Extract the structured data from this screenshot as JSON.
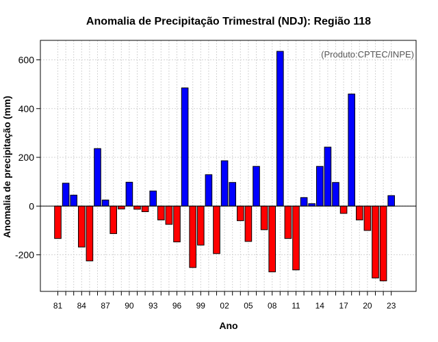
{
  "chart_data": {
    "type": "bar",
    "title": "Anomalia de Precipitação Trimestral (NDJ): Região 118",
    "xlabel": "Ano",
    "ylabel": "Anomalia de precipitação (mm)",
    "credit": "(Produto:CPTEC/INPE)",
    "ylim": [
      -350,
      680
    ],
    "yticks": [
      -200,
      0,
      200,
      400,
      600
    ],
    "grid": true,
    "positive_color": "#0000ff",
    "negative_color": "#ff0000",
    "categories": [
      "1981",
      "1982",
      "1983",
      "1984",
      "1985",
      "1986",
      "1987",
      "1988",
      "1989",
      "1990",
      "1991",
      "1992",
      "1993",
      "1994",
      "1995",
      "1996",
      "1997",
      "1998",
      "1999",
      "2000",
      "2001",
      "2002",
      "2003",
      "2004",
      "2005",
      "2006",
      "2007",
      "2008",
      "2009",
      "2010",
      "2011",
      "2012",
      "2013",
      "2014",
      "2015",
      "2016",
      "2017",
      "2018",
      "2019",
      "2020",
      "2021",
      "2022",
      "2023"
    ],
    "xtick_labels": [
      {
        "index": 0,
        "label": "81"
      },
      {
        "index": 3,
        "label": "84"
      },
      {
        "index": 6,
        "label": "87"
      },
      {
        "index": 9,
        "label": "90"
      },
      {
        "index": 12,
        "label": "93"
      },
      {
        "index": 15,
        "label": "96"
      },
      {
        "index": 18,
        "label": "99"
      },
      {
        "index": 21,
        "label": "02"
      },
      {
        "index": 24,
        "label": "05"
      },
      {
        "index": 27,
        "label": "08"
      },
      {
        "index": 30,
        "label": "11"
      },
      {
        "index": 33,
        "label": "14"
      },
      {
        "index": 36,
        "label": "17"
      },
      {
        "index": 39,
        "label": "20"
      },
      {
        "index": 42,
        "label": "23"
      }
    ],
    "series": [
      {
        "name": "Anomalia (mm)",
        "values": [
          -133,
          94,
          45,
          -168,
          -225,
          236,
          25,
          -113,
          -12,
          98,
          -13,
          -23,
          62,
          -57,
          -75,
          -147,
          485,
          -252,
          -160,
          129,
          -195,
          186,
          97,
          -60,
          -145,
          163,
          -97,
          -270,
          635,
          -133,
          -262,
          35,
          10,
          163,
          242,
          97,
          -30,
          460,
          -57,
          -100,
          -295,
          -307,
          43
        ]
      }
    ]
  }
}
